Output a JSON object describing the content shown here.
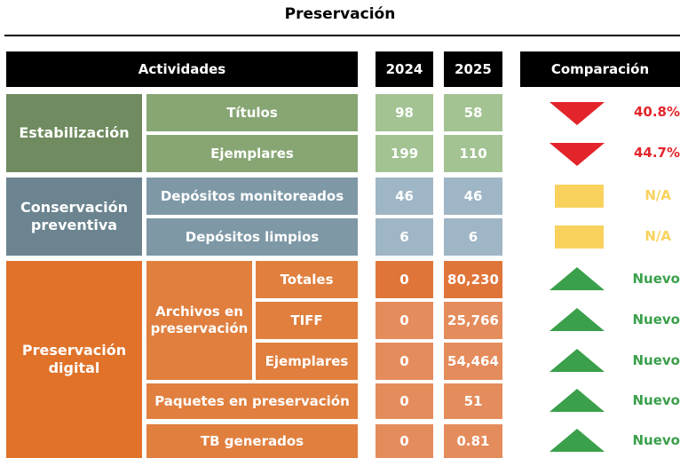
{
  "title": "Preservación",
  "header": {
    "activities": "Actividades",
    "y2024": "2024",
    "y2025": "2025",
    "comparison": "Comparación"
  },
  "groups": [
    {
      "label": "Estabilización",
      "rows": [
        {
          "label": "Títulos",
          "v2024": "98",
          "v2025": "58",
          "comparison": "40.8%",
          "trend": "down"
        },
        {
          "label": "Ejemplares",
          "v2024": "199",
          "v2025": "110",
          "comparison": "44.7%",
          "trend": "down"
        }
      ]
    },
    {
      "label": "Conservación preventiva",
      "rows": [
        {
          "label": "Depósitos monitoreados",
          "v2024": "46",
          "v2025": "46",
          "comparison": "N/A",
          "trend": "flat"
        },
        {
          "label": "Depósitos limpios",
          "v2024": "6",
          "v2025": "6",
          "comparison": "N/A",
          "trend": "flat"
        }
      ]
    },
    {
      "label": "Preservación digital",
      "rows": [
        {
          "label": "Archivos en preservación",
          "rows": [
            {
              "label": "Totales",
              "v2024": "0",
              "v2025": "80,230",
              "comparison": "Nuevo",
              "trend": "up"
            },
            {
              "label": "TIFF",
              "v2024": "0",
              "v2025": "25,766",
              "comparison": "Nuevo",
              "trend": "up"
            },
            {
              "label": "Ejemplares",
              "v2024": "0",
              "v2025": "54,464",
              "comparison": "Nuevo",
              "trend": "up"
            }
          ]
        },
        {
          "label": "Paquetes en preservación",
          "v2024": "0",
          "v2025": "51",
          "comparison": "Nuevo",
          "trend": "up"
        },
        {
          "label": "TB generados",
          "v2024": "0",
          "v2025": "0.81",
          "comparison": "Nuevo",
          "trend": "up"
        }
      ]
    }
  ]
}
